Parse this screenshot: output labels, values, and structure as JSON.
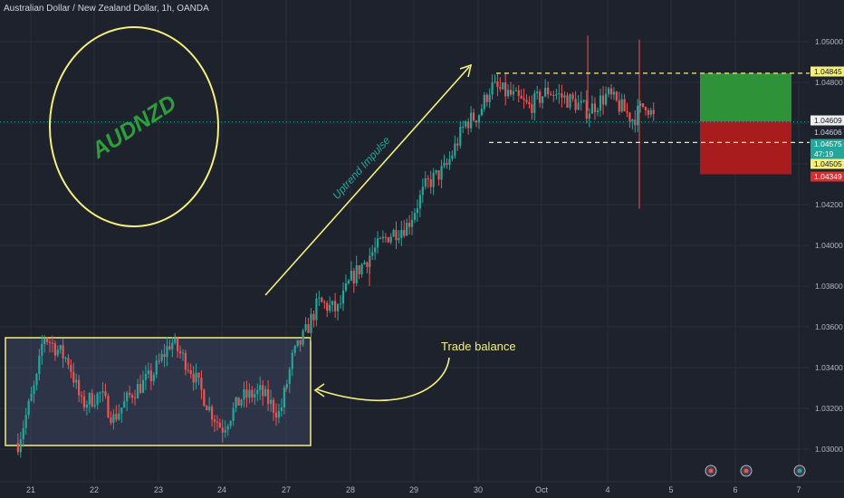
{
  "header": {
    "symbol_title": "Australian Dollar / New Zealand Dollar, 1h, OANDA"
  },
  "annotations": {
    "logo_text": "AUDNZD",
    "impulse_label": "Uptrend Impulse",
    "balance_label": "Trade balance"
  },
  "colors": {
    "background": "#1e222d",
    "up": "#26a69a",
    "down": "#ef5350",
    "highlight": "#f5f07a",
    "logo": "#2e9e3a",
    "target_zone": "#2f9e3a",
    "stop_zone": "#b71c1c",
    "current_line": "#26a69a"
  },
  "price_scale": {
    "ticks": [
      "1.05000",
      "1.04800",
      "1.04200",
      "1.04000",
      "1.03800",
      "1.03600",
      "1.03400",
      "1.03200",
      "1.03000"
    ],
    "tags": [
      {
        "label": "1.04845",
        "style": "yellow"
      },
      {
        "label": "1.04609",
        "style": "light"
      },
      {
        "label": "1.04606",
        "style": "plain"
      },
      {
        "label": "1.04575",
        "style": "teal"
      },
      {
        "label": "47:19",
        "style": "teal"
      },
      {
        "label": "1.04505",
        "style": "yellow"
      },
      {
        "label": "1.04349",
        "style": "red"
      }
    ]
  },
  "time_scale": {
    "ticks": [
      "21",
      "22",
      "23",
      "24",
      "27",
      "28",
      "29",
      "30",
      "Oct",
      "4",
      "5",
      "6",
      "7"
    ]
  },
  "chart_data": {
    "type": "candlestick",
    "title": "Australian Dollar / New Zealand Dollar, 1h, OANDA",
    "ylim": [
      1.0292,
      1.0518
    ],
    "x_ticks": [
      "21",
      "22",
      "23",
      "24",
      "27",
      "28",
      "29",
      "30",
      "Oct",
      "4",
      "5",
      "6",
      "7"
    ],
    "y_ticks": [
      1.05,
      1.048,
      1.042,
      1.04,
      1.038,
      1.036,
      1.034,
      1.032,
      1.03
    ],
    "levels": {
      "range_top": 1.04845,
      "range_bottom": 1.04505,
      "current_price": 1.04606,
      "take_profit": 1.04845,
      "entry": 1.04609,
      "stop_loss": 1.04349
    },
    "balance_zone": {
      "price_high": 1.0355,
      "price_low": 1.0301
    },
    "path_anchors": [
      {
        "day": 20.8,
        "price": 1.0303
      },
      {
        "day": 21.1,
        "price": 1.0335
      },
      {
        "day": 21.2,
        "price": 1.0356
      },
      {
        "day": 21.6,
        "price": 1.0343
      },
      {
        "day": 21.8,
        "price": 1.0322
      },
      {
        "day": 22.1,
        "price": 1.0327
      },
      {
        "day": 22.3,
        "price": 1.0315
      },
      {
        "day": 22.6,
        "price": 1.0328
      },
      {
        "day": 22.9,
        "price": 1.0336
      },
      {
        "day": 23.2,
        "price": 1.0353
      },
      {
        "day": 23.5,
        "price": 1.034
      },
      {
        "day": 23.8,
        "price": 1.032
      },
      {
        "day": 24.0,
        "price": 1.031
      },
      {
        "day": 24.3,
        "price": 1.0325
      },
      {
        "day": 24.6,
        "price": 1.0328
      },
      {
        "day": 24.9,
        "price": 1.0317
      },
      {
        "day": 25.1,
        "price": 1.0345
      },
      {
        "day": 25.3,
        "price": 1.0357
      },
      {
        "day": 25.5,
        "price": 1.0372
      },
      {
        "day": 25.8,
        "price": 1.0368
      },
      {
        "day": 26.0,
        "price": 1.0383
      },
      {
        "day": 26.3,
        "price": 1.0395
      },
      {
        "day": 26.6,
        "price": 1.0405
      },
      {
        "day": 26.9,
        "price": 1.041
      },
      {
        "day": 27.2,
        "price": 1.043
      },
      {
        "day": 27.5,
        "price": 1.0438
      },
      {
        "day": 27.8,
        "price": 1.046
      },
      {
        "day": 28.0,
        "price": 1.0464
      },
      {
        "day": 28.2,
        "price": 1.0478
      },
      {
        "day": 28.5,
        "price": 1.0474
      },
      {
        "day": 28.8,
        "price": 1.0468
      },
      {
        "day": 29.1,
        "price": 1.0476
      },
      {
        "day": 29.5,
        "price": 1.047
      },
      {
        "day": 29.7,
        "price": 1.0466
      },
      {
        "day": 30.0,
        "price": 1.0474
      },
      {
        "day": 30.4,
        "price": 1.0462
      },
      {
        "day": 30.6,
        "price": 1.047
      },
      {
        "day": 30.75,
        "price": 1.0461
      }
    ],
    "notable_wicks": [
      {
        "day": 29.7,
        "price": 1.0503
      },
      {
        "day": 30.5,
        "price": 1.0501
      },
      {
        "day": 30.5,
        "price": 1.0418
      },
      {
        "day": 26.3,
        "price": 1.038
      },
      {
        "day": 25.0,
        "price": 1.0328
      }
    ]
  }
}
